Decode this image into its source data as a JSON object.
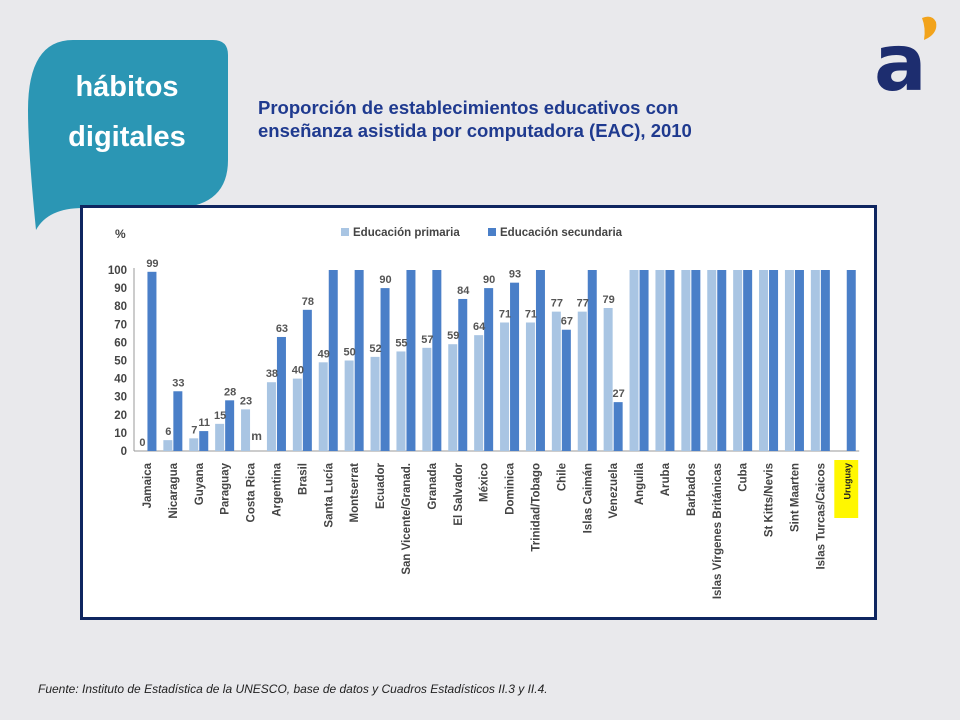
{
  "badge": {
    "line1": "hábitos",
    "line2": "digitales",
    "color": "#2b96b4"
  },
  "logo": {
    "glyph": "a",
    "color": "#1d2d6f",
    "accent": "#f2a31b"
  },
  "title": {
    "line1": "Proporción de establecimientos educativos con",
    "line2": "enseñanza asistida por computadora (EAC), 2010"
  },
  "footer": {
    "source": "Fuente: Instituto de Estadística de la UNESCO, base de datos y Cuadros Estadísticos II.3 y II.4."
  },
  "chart_data": {
    "type": "bar",
    "ylabel": "%",
    "ylim": [
      0,
      100
    ],
    "yticks": [
      0,
      10,
      20,
      30,
      40,
      50,
      60,
      70,
      80,
      90,
      100
    ],
    "legend_position": "top",
    "categories": [
      "Jamaica",
      "Nicaragua",
      "Guyana",
      "Paraguay",
      "Costa Rica",
      "Argentina",
      "Brasil",
      "Santa Lucía",
      "Montserrat",
      "Ecuador",
      "San Vicente/Granad.",
      "Granada",
      "El Salvador",
      "México",
      "Dominica",
      "Trinidad/Tobago",
      "Chile",
      "Islas Caimán",
      "Venezuela",
      "Anguila",
      "Aruba",
      "Barbados",
      "Islas Vírgenes Británicas",
      "Cuba",
      "St Kitts/Nevis",
      "Sint Maarten",
      "Islas Turcas/Caicos",
      "Uruguay"
    ],
    "series": [
      {
        "name": "Educación primaria",
        "color": "#a9c5e3",
        "values": [
          0,
          6,
          7,
          15,
          23,
          38,
          40,
          49,
          50,
          52,
          55,
          57,
          59,
          64,
          71,
          71,
          77,
          77,
          79,
          100,
          100,
          100,
          100,
          100,
          100,
          100,
          100,
          null
        ]
      },
      {
        "name": "Educación secundaria",
        "color": "#4a7fc8",
        "values": [
          99,
          33,
          11,
          28,
          null,
          63,
          78,
          100,
          100,
          90,
          100,
          100,
          84,
          90,
          93,
          100,
          67,
          100,
          27,
          100,
          100,
          100,
          100,
          100,
          100,
          100,
          100,
          100
        ]
      }
    ],
    "primary_labels": [
      "0",
      "6",
      "7",
      "15",
      "23",
      "38",
      "40",
      "49",
      "50",
      "52",
      "55",
      "57",
      "59",
      "64",
      "71",
      "71",
      "77",
      "77",
      "79"
    ],
    "secondary_labels": [
      "99",
      "33",
      "11",
      "28",
      "",
      "63",
      "78",
      "",
      "",
      "90",
      "",
      "",
      "84",
      "90",
      "93",
      "",
      "67",
      "",
      "27"
    ],
    "annotations": [
      {
        "category": "Costa Rica",
        "text": "m"
      }
    ],
    "highlight": {
      "category": "Uruguay",
      "color": "#fff700"
    }
  }
}
